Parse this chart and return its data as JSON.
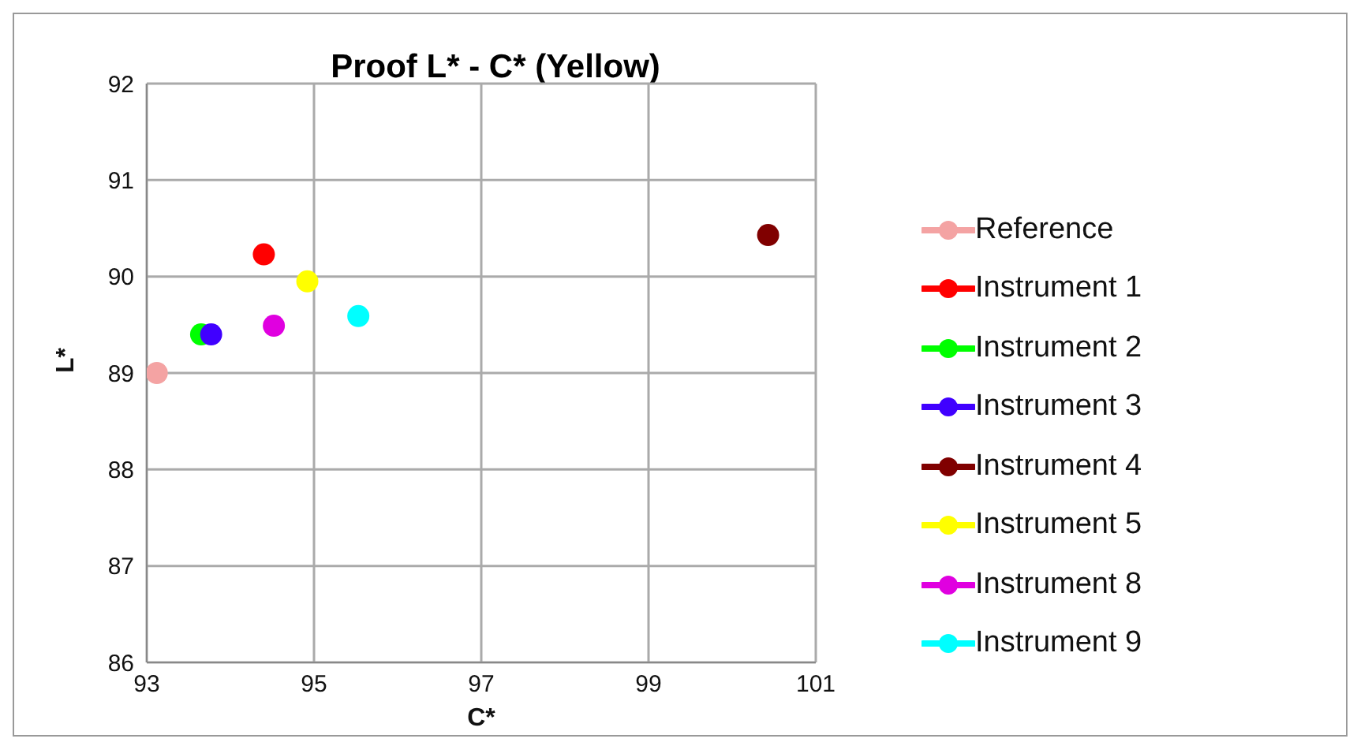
{
  "chart_data": {
    "type": "scatter",
    "title": "Proof L* - C* (Yellow)",
    "xlabel": "C*",
    "ylabel": "L*",
    "xlim": [
      93,
      101
    ],
    "xticks": [
      93,
      95,
      97,
      99,
      101
    ],
    "ylim": [
      86,
      92
    ],
    "yticks": [
      86,
      87,
      88,
      89,
      90,
      91,
      92
    ],
    "grid": true,
    "legend": "right",
    "marker": "circle",
    "series": [
      {
        "name": "Reference",
        "color": "#f4a3a3",
        "x": [
          93.12
        ],
        "values": [
          89.0
        ]
      },
      {
        "name": "Instrument 1",
        "color": "#ff0000",
        "x": [
          94.4
        ],
        "values": [
          90.23
        ]
      },
      {
        "name": "Instrument 2",
        "color": "#00ff00",
        "x": [
          93.65
        ],
        "values": [
          89.4
        ]
      },
      {
        "name": "Instrument 3",
        "color": "#4000ff",
        "x": [
          93.77
        ],
        "values": [
          89.4
        ]
      },
      {
        "name": "Instrument 4",
        "color": "#800000",
        "x": [
          100.43
        ],
        "values": [
          90.43
        ]
      },
      {
        "name": "Instrument 5",
        "color": "#ffff00",
        "x": [
          94.92
        ],
        "values": [
          89.95
        ]
      },
      {
        "name": "Instrument 8",
        "color": "#e000e0",
        "x": [
          94.52
        ],
        "values": [
          89.49
        ]
      },
      {
        "name": "Instrument 9",
        "color": "#00ffff",
        "x": [
          95.53
        ],
        "values": [
          89.59
        ]
      }
    ]
  }
}
